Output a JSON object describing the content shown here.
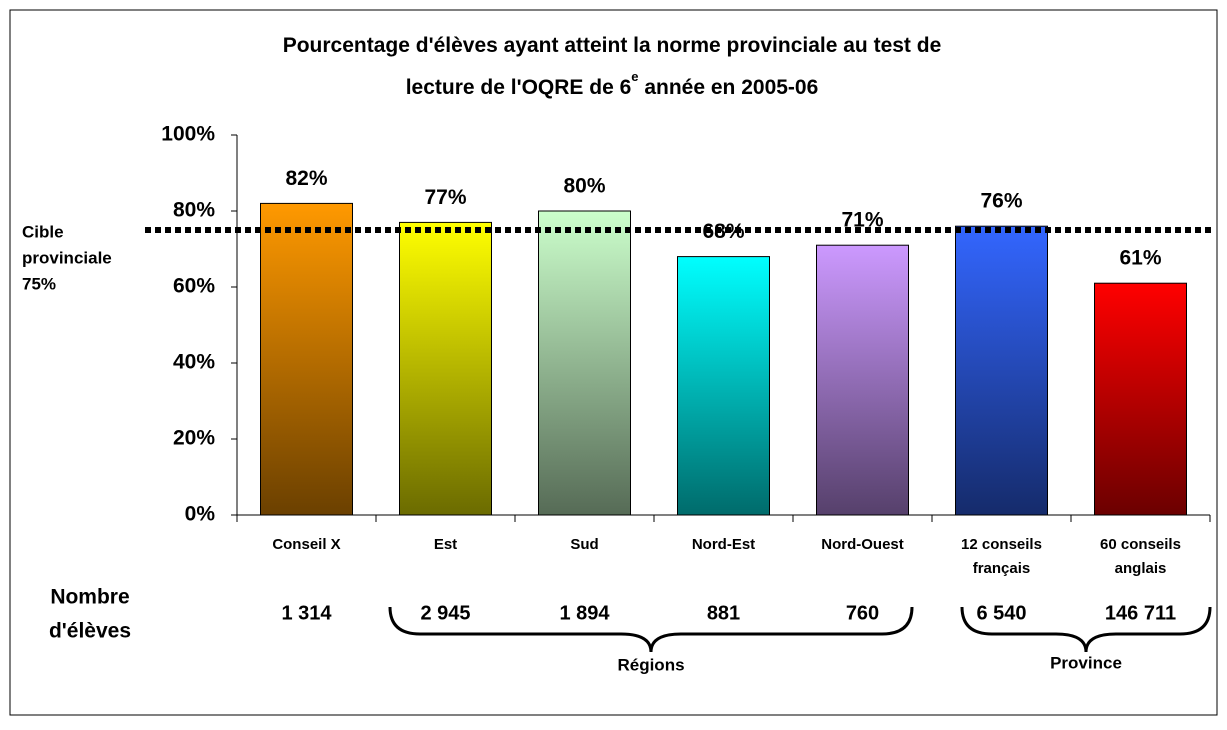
{
  "chart_data": {
    "type": "bar",
    "title": {
      "line1": "Pourcentage d'élèves ayant atteint la norme provinciale au test de",
      "line2": "lecture de l'OQRE de 6",
      "sup": "e",
      "line2_end": " année en 2005-06"
    },
    "categories": [
      "Conseil X",
      "Est",
      "Sud",
      "Nord-Est",
      "Nord-Ouest",
      "12 conseils français",
      "60 conseils anglais"
    ],
    "values": [
      82,
      77,
      80,
      68,
      71,
      76,
      61
    ],
    "value_labels": [
      "82%",
      "77%",
      "80%",
      "68%",
      "71%",
      "76%",
      "61%"
    ],
    "colors": [
      "#ff9900",
      "#ffff00",
      "#ccffcc",
      "#00ffff",
      "#cc99ff",
      "#3366ff",
      "#ff0000"
    ],
    "ylim": [
      0,
      100
    ],
    "yticks": [
      {
        "value": 0,
        "label": "0%"
      },
      {
        "value": 20,
        "label": "20%"
      },
      {
        "value": 40,
        "label": "40%"
      },
      {
        "value": 60,
        "label": "60%"
      },
      {
        "value": 80,
        "label": "80%"
      },
      {
        "value": 100,
        "label": "100%"
      }
    ],
    "target": {
      "value": 75,
      "label": [
        "Cible",
        "provinciale",
        "75%"
      ]
    },
    "count_title": [
      "Nombre",
      "d'élèves"
    ],
    "counts": [
      1314,
      2945,
      1894,
      881,
      760,
      6540,
      146711
    ],
    "count_labels": [
      "1 314",
      "2 945",
      "1 894",
      "881",
      "760",
      "6 540",
      "146 711"
    ],
    "groups": [
      "Régions",
      "Province"
    ]
  }
}
